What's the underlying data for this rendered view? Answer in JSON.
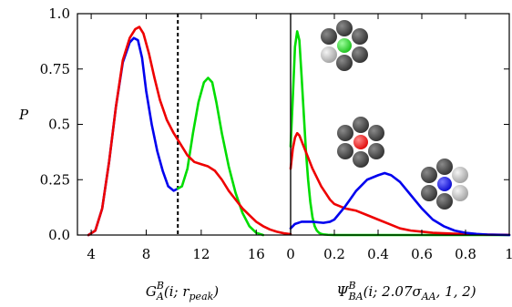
{
  "chart_data": [
    {
      "type": "line",
      "ylabel": "P",
      "xlabel_main": "G",
      "xlabel_sup": "B",
      "xlabel_sub": "A",
      "xlabel_args": "(i; r",
      "xlabel_args_sub": "peak",
      "xlabel_close": ")",
      "xlim": [
        3,
        18.5
      ],
      "ylim": [
        0,
        1.0
      ],
      "xticks": [
        "4",
        "8",
        "12",
        "16"
      ],
      "xtick_values": [
        4,
        8,
        12,
        16
      ],
      "yticks": [
        "0.0",
        "0.25",
        "0.5",
        "0.75",
        "1.0"
      ],
      "ytick_values": [
        0,
        0.25,
        0.5,
        0.75,
        1.0
      ],
      "vline_x": 10.3,
      "series": [
        {
          "color": "#0000ee",
          "x": [
            3.8,
            4.3,
            4.8,
            5.3,
            5.8,
            6.3,
            6.8,
            7.1,
            7.4,
            7.7,
            8.0,
            8.4,
            8.8,
            9.2,
            9.6,
            10.0,
            10.3
          ],
          "y": [
            0.0,
            0.02,
            0.12,
            0.33,
            0.58,
            0.78,
            0.87,
            0.89,
            0.88,
            0.8,
            0.65,
            0.5,
            0.38,
            0.29,
            0.22,
            0.2,
            0.21
          ]
        },
        {
          "color": "#00dd00",
          "x": [
            10.3,
            10.6,
            11.0,
            11.4,
            11.8,
            12.2,
            12.5,
            12.8,
            13.1,
            13.5,
            14.0,
            14.5,
            15.0,
            15.5,
            16.0,
            16.5
          ],
          "y": [
            0.21,
            0.22,
            0.3,
            0.46,
            0.6,
            0.69,
            0.71,
            0.69,
            0.6,
            0.46,
            0.31,
            0.19,
            0.1,
            0.04,
            0.01,
            0.0
          ]
        },
        {
          "color": "#ee0000",
          "x": [
            3.8,
            4.3,
            4.8,
            5.3,
            5.8,
            6.3,
            6.8,
            7.2,
            7.5,
            7.8,
            8.2,
            8.6,
            9.0,
            9.5,
            10.0,
            10.5,
            11.0,
            11.5,
            12.0,
            12.5,
            13.0,
            13.5,
            14.0,
            14.5,
            15.0,
            15.5,
            16.0,
            16.5,
            17.0,
            17.5,
            18.0,
            18.5
          ],
          "y": [
            0.0,
            0.02,
            0.12,
            0.33,
            0.58,
            0.79,
            0.89,
            0.93,
            0.94,
            0.91,
            0.82,
            0.71,
            0.61,
            0.52,
            0.46,
            0.41,
            0.36,
            0.33,
            0.32,
            0.31,
            0.29,
            0.25,
            0.2,
            0.16,
            0.12,
            0.09,
            0.06,
            0.04,
            0.025,
            0.015,
            0.008,
            0.004
          ]
        }
      ]
    },
    {
      "type": "line",
      "xlabel_main": "Ψ",
      "xlabel_sup": "B",
      "xlabel_sub": "BA",
      "xlabel_args": "(i; 2.07σ",
      "xlabel_args_sub": "AA",
      "xlabel_close": ", 1, 2)",
      "xlim": [
        0,
        1
      ],
      "ylim": [
        0,
        1.0
      ],
      "xticks": [
        "0",
        "0.2",
        "0.4",
        "0.6",
        "0.8",
        "1"
      ],
      "xtick_values": [
        0,
        0.2,
        0.4,
        0.6,
        0.8,
        1.0
      ],
      "series": [
        {
          "color": "#00dd00",
          "x": [
            0.0,
            0.01,
            0.02,
            0.03,
            0.04,
            0.05,
            0.06,
            0.07,
            0.08,
            0.09,
            0.1,
            0.11,
            0.12,
            0.13,
            0.14,
            0.15,
            0.17,
            0.2,
            0.25,
            0.3,
            0.4,
            0.5,
            0.6,
            1.0
          ],
          "y": [
            0.4,
            0.62,
            0.85,
            0.92,
            0.88,
            0.72,
            0.55,
            0.38,
            0.25,
            0.15,
            0.08,
            0.04,
            0.02,
            0.01,
            0.005,
            0.003,
            0.001,
            0.0,
            0.0,
            0.0,
            0.0,
            0.0,
            0.0,
            0.0
          ]
        },
        {
          "color": "#ee0000",
          "x": [
            0.0,
            0.01,
            0.02,
            0.03,
            0.04,
            0.06,
            0.08,
            0.1,
            0.12,
            0.14,
            0.16,
            0.18,
            0.2,
            0.25,
            0.3,
            0.35,
            0.4,
            0.45,
            0.5,
            0.55,
            0.6,
            0.65,
            0.7,
            0.8,
            0.9,
            1.0
          ],
          "y": [
            0.3,
            0.39,
            0.44,
            0.46,
            0.45,
            0.4,
            0.35,
            0.3,
            0.26,
            0.22,
            0.19,
            0.16,
            0.14,
            0.12,
            0.11,
            0.09,
            0.07,
            0.05,
            0.03,
            0.02,
            0.015,
            0.01,
            0.008,
            0.004,
            0.002,
            0.001
          ]
        },
        {
          "color": "#0000ee",
          "x": [
            0.0,
            0.02,
            0.05,
            0.1,
            0.15,
            0.18,
            0.2,
            0.25,
            0.3,
            0.35,
            0.4,
            0.43,
            0.46,
            0.5,
            0.55,
            0.6,
            0.65,
            0.7,
            0.75,
            0.8,
            0.85,
            0.9,
            1.0
          ],
          "y": [
            0.03,
            0.05,
            0.06,
            0.06,
            0.055,
            0.06,
            0.07,
            0.13,
            0.2,
            0.25,
            0.27,
            0.28,
            0.27,
            0.24,
            0.18,
            0.12,
            0.07,
            0.04,
            0.02,
            0.01,
            0.005,
            0.002,
            0.0
          ]
        }
      ]
    }
  ]
}
